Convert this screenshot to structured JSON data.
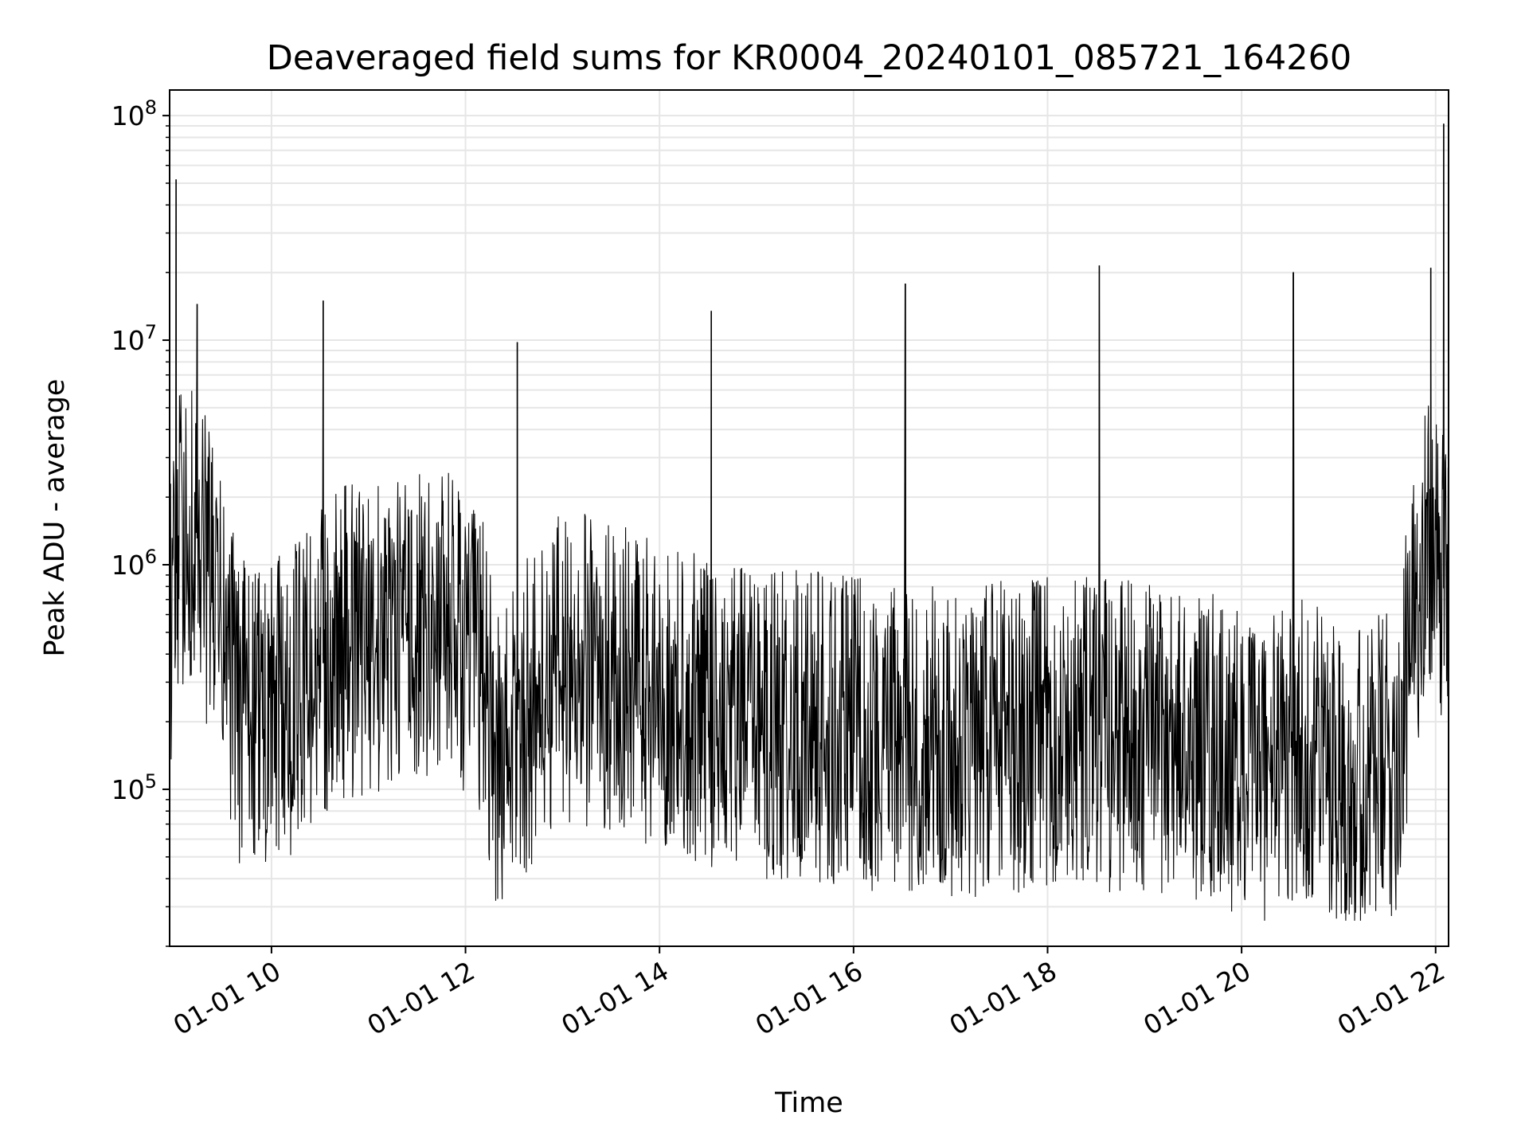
{
  "chart_data": {
    "type": "line",
    "title": "Deaveraged field sums for KR0004_20240101_085721_164260",
    "xlabel": "Time",
    "ylabel": "Peak ADU - average",
    "yscale": "log",
    "ylim": [
      20000,
      130000000
    ],
    "xlim": [
      "2024-01-01 08:57",
      "2024-01-01 22:08"
    ],
    "grid": true,
    "line_color": "#000000",
    "grid_color": "#e6e6e6",
    "x_ticks": [
      {
        "value": "2024-01-01 10:00",
        "label": "01-01 10"
      },
      {
        "value": "2024-01-01 12:00",
        "label": "01-01 12"
      },
      {
        "value": "2024-01-01 14:00",
        "label": "01-01 14"
      },
      {
        "value": "2024-01-01 16:00",
        "label": "01-01 16"
      },
      {
        "value": "2024-01-01 18:00",
        "label": "01-01 18"
      },
      {
        "value": "2024-01-01 20:00",
        "label": "01-01 20"
      },
      {
        "value": "2024-01-01 22:00",
        "label": "01-01 22"
      }
    ],
    "y_ticks": [
      {
        "value": 100000,
        "base": "10",
        "exp": "5"
      },
      {
        "value": 1000000,
        "base": "10",
        "exp": "6"
      },
      {
        "value": 10000000,
        "base": "10",
        "exp": "7"
      },
      {
        "value": 100000000,
        "base": "10",
        "exp": "8"
      }
    ],
    "baseline": [
      [
        "2024-01-01 08:57",
        600000
      ],
      [
        "2024-01-01 09:05",
        1400000
      ],
      [
        "2024-01-01 09:15",
        1300000
      ],
      [
        "2024-01-01 09:25",
        700000
      ],
      [
        "2024-01-01 09:40",
        220000
      ],
      [
        "2024-01-01 10:00",
        200000
      ],
      [
        "2024-01-01 10:20",
        300000
      ],
      [
        "2024-01-01 10:45",
        450000
      ],
      [
        "2024-01-01 11:15",
        500000
      ],
      [
        "2024-01-01 11:50",
        550000
      ],
      [
        "2024-01-01 12:10",
        350000
      ],
      [
        "2024-01-01 12:20",
        130000
      ],
      [
        "2024-01-01 12:35",
        200000
      ],
      [
        "2024-01-01 13:00",
        350000
      ],
      [
        "2024-01-01 13:30",
        320000
      ],
      [
        "2024-01-01 14:00",
        250000
      ],
      [
        "2024-01-01 15:00",
        200000
      ],
      [
        "2024-01-01 16:00",
        180000
      ],
      [
        "2024-01-01 17:00",
        160000
      ],
      [
        "2024-01-01 18:00",
        180000
      ],
      [
        "2024-01-01 19:00",
        170000
      ],
      [
        "2024-01-01 19:45",
        150000
      ],
      [
        "2024-01-01 20:00",
        120000
      ],
      [
        "2024-01-01 20:45",
        150000
      ],
      [
        "2024-01-01 21:15",
        110000
      ],
      [
        "2024-01-01 21:35",
        130000
      ],
      [
        "2024-01-01 21:45",
        400000
      ],
      [
        "2024-01-01 21:52",
        1300000
      ],
      [
        "2024-01-01 22:00",
        950000
      ],
      [
        "2024-01-01 22:08",
        700000
      ]
    ],
    "spikes": [
      [
        "2024-01-01 09:01",
        52000000
      ],
      [
        "2024-01-01 09:14",
        14500000
      ],
      [
        "2024-01-01 10:32",
        15000000
      ],
      [
        "2024-01-01 12:32",
        9800000
      ],
      [
        "2024-01-01 14:32",
        13500000
      ],
      [
        "2024-01-01 16:32",
        17800000
      ],
      [
        "2024-01-01 18:32",
        21500000
      ],
      [
        "2024-01-01 20:32",
        20000000
      ],
      [
        "2024-01-01 21:57",
        21000000
      ],
      [
        "2024-01-01 22:05",
        92000000
      ]
    ]
  }
}
